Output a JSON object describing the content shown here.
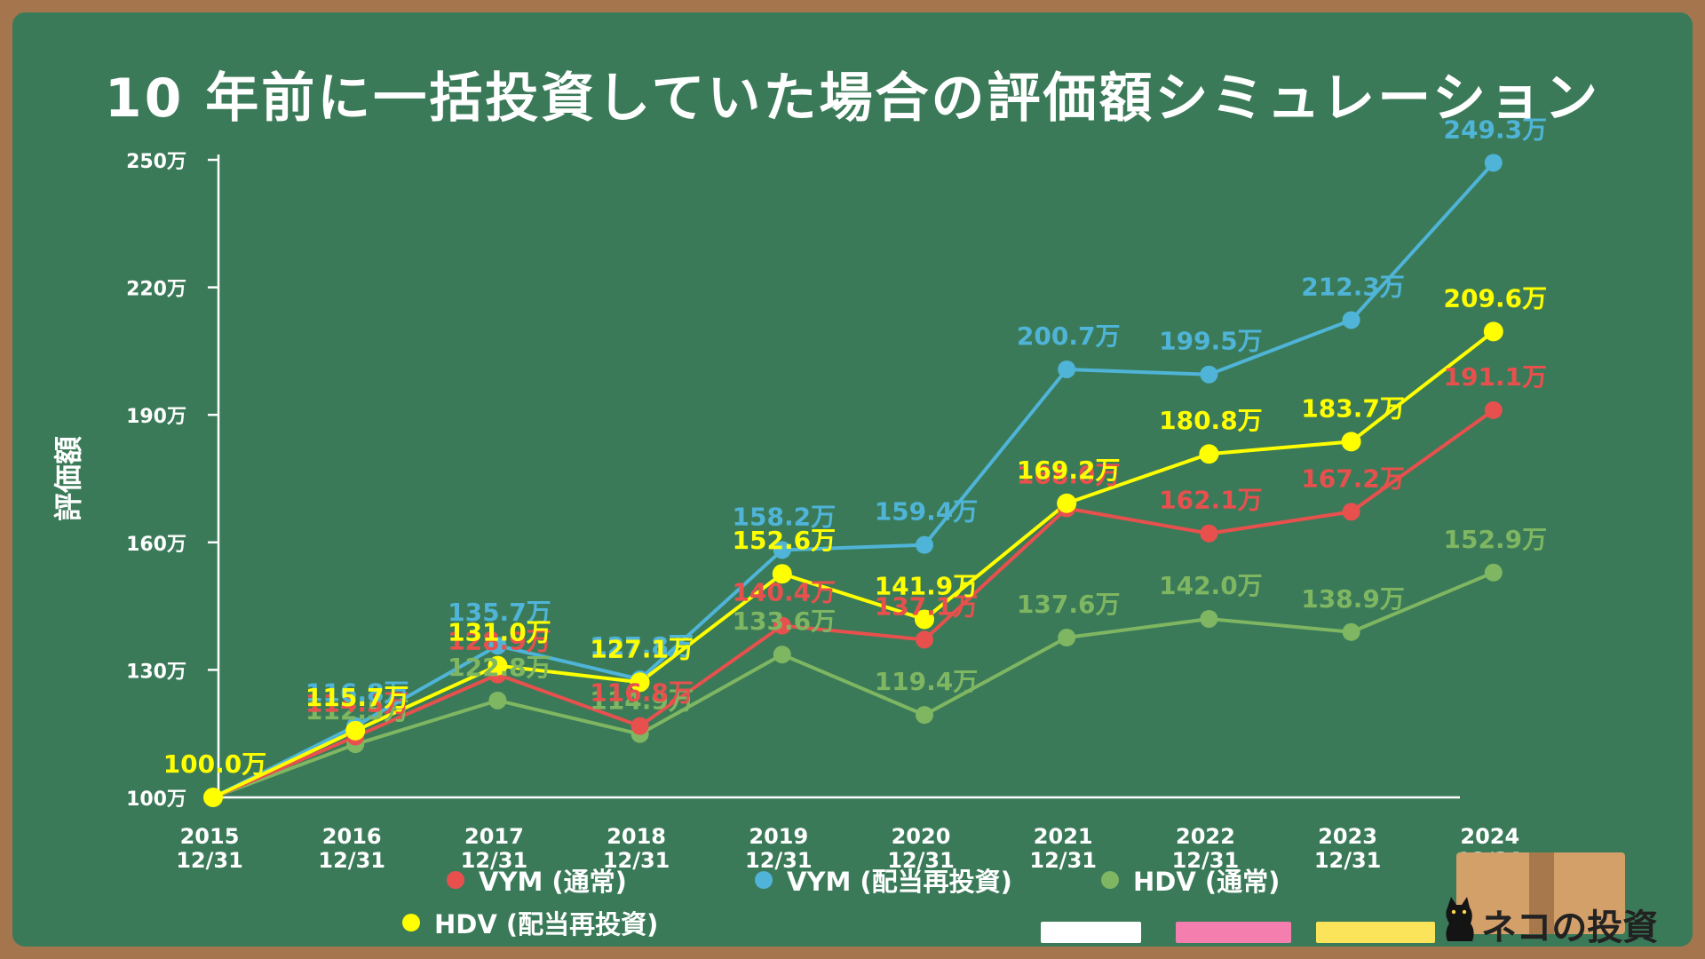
{
  "title": "10 年前に一括投資していた場合の評価額シミュレーション",
  "logo_text": "ネコの投資",
  "chart_data": {
    "type": "line",
    "ylabel": "評価額",
    "xlabel": "",
    "ylim": [
      100,
      250
    ],
    "yticks": [
      {
        "value": 100,
        "label": "100万"
      },
      {
        "value": 130,
        "label": "130万"
      },
      {
        "value": 160,
        "label": "160万"
      },
      {
        "value": 190,
        "label": "190万"
      },
      {
        "value": 220,
        "label": "220万"
      },
      {
        "value": 250,
        "label": "250万"
      }
    ],
    "categories": [
      "2015\n12/31",
      "2016\n12/31",
      "2017\n12/31",
      "2018\n12/31",
      "2019\n12/31",
      "2020\n12/31",
      "2021\n12/31",
      "2022\n12/31",
      "2023\n12/31",
      "2024\n12/31"
    ],
    "grid": false,
    "legend_position": "bottom",
    "series": [
      {
        "name": "VYM (通常)",
        "color": "#e8504e",
        "values": [
          100.0,
          114.3,
          128.9,
          116.8,
          140.4,
          137.1,
          168.0,
          162.1,
          167.2,
          191.1
        ],
        "labels": [
          "",
          "114.3万",
          "128.9万",
          "116.8万",
          "140.4万",
          "137.1万",
          "168.0万",
          "162.1万",
          "167.2万",
          "191.1万"
        ]
      },
      {
        "name": "VYM (配当再投資)",
        "color": "#4fb4d8",
        "values": [
          100.0,
          116.8,
          135.7,
          127.8,
          158.2,
          159.4,
          200.7,
          199.5,
          212.3,
          249.3
        ],
        "labels": [
          "",
          "116.8万",
          "135.7万",
          "127.8万",
          "158.2万",
          "159.4万",
          "200.7万",
          "199.5万",
          "212.3万",
          "249.3万"
        ]
      },
      {
        "name": "HDV (通常)",
        "color": "#7fb662",
        "values": [
          100.0,
          112.5,
          122.8,
          114.9,
          133.6,
          119.4,
          137.6,
          142.0,
          138.9,
          152.9
        ],
        "labels": [
          "",
          "112.5万",
          "122.8万",
          "114.9万",
          "133.6万",
          "119.4万",
          "137.6万",
          "142.0万",
          "138.9万",
          "152.9万"
        ]
      },
      {
        "name": "HDV (配当再投資)",
        "color": "#ffff00",
        "values": [
          100.0,
          115.7,
          131.0,
          127.1,
          152.6,
          141.9,
          169.2,
          180.8,
          183.7,
          209.6
        ],
        "labels": [
          "100.0万",
          "115.7万",
          "131.0万",
          "127.1万",
          "152.6万",
          "141.9万",
          "169.2万",
          "180.8万",
          "183.7万",
          "209.6万"
        ]
      }
    ]
  },
  "decor": {
    "chalk_colors": [
      "#ffffff",
      "#f47fae",
      "#fbe45a"
    ]
  }
}
